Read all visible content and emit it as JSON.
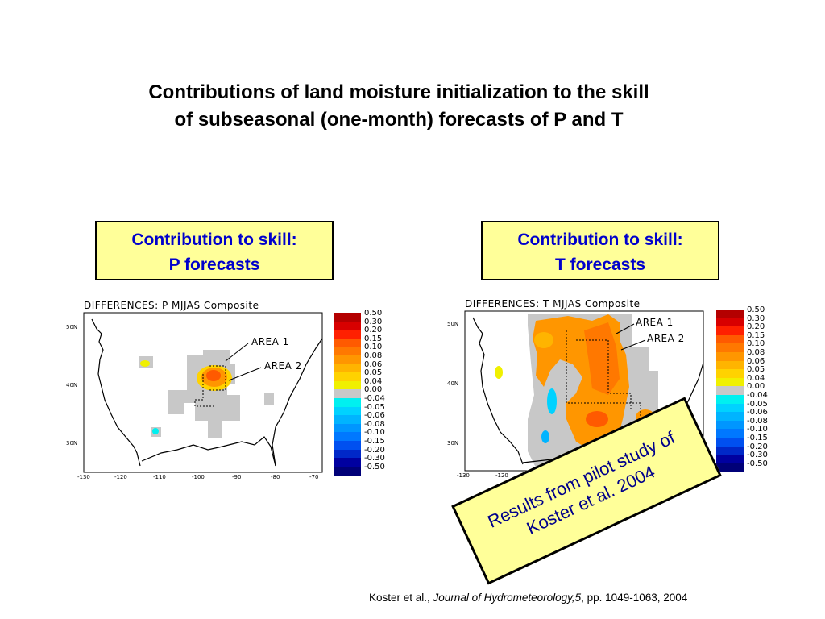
{
  "title": {
    "line1": "Contributions of land moisture initialization to the skill",
    "line2": "of subseasonal (one-month) forecasts of P and T"
  },
  "label_left": {
    "line1": "Contribution to skill:",
    "line2": "P forecasts"
  },
  "label_right": {
    "line1": "Contribution to skill:",
    "line2": "T forecasts"
  },
  "maps": [
    {
      "heading": "DIFFERENCES:  P    MJJAS Composite",
      "area1": "AREA 1",
      "area2": "AREA 2",
      "lat_ticks": [
        "50N",
        "40N",
        "30N"
      ],
      "lon_ticks": [
        "-130",
        "-120",
        "-110",
        "-100",
        "-90",
        "-80",
        "-70"
      ]
    },
    {
      "heading": "DIFFERENCES:  T    MJJAS Composite",
      "area1": "AREA 1",
      "area2": "AREA 2",
      "lat_ticks": [
        "50N",
        "40N",
        "30N"
      ],
      "lon_ticks": [
        "-130",
        "-120"
      ]
    }
  ],
  "legend": [
    {
      "label": "0.50",
      "color": "#b40000"
    },
    {
      "label": "0.30",
      "color": "#d80000"
    },
    {
      "label": "0.20",
      "color": "#ff2000"
    },
    {
      "label": "0.15",
      "color": "#ff5a00"
    },
    {
      "label": "0.10",
      "color": "#ff7800"
    },
    {
      "label": "0.08",
      "color": "#ff9600"
    },
    {
      "label": "0.06",
      "color": "#ffb400"
    },
    {
      "label": "0.05",
      "color": "#ffd200"
    },
    {
      "label": "0.04",
      "color": "#f0f000"
    },
    {
      "label": "0.00",
      "color": "#c8c8c8"
    },
    {
      "label": "-0.04",
      "color": "#00f0f0"
    },
    {
      "label": "-0.05",
      "color": "#00d2ff"
    },
    {
      "label": "-0.06",
      "color": "#00b4ff"
    },
    {
      "label": "-0.08",
      "color": "#0096ff"
    },
    {
      "label": "-0.10",
      "color": "#0078ff"
    },
    {
      "label": "-0.15",
      "color": "#0050f0"
    },
    {
      "label": "-0.20",
      "color": "#0028c8"
    },
    {
      "label": "-0.30",
      "color": "#0000a0"
    },
    {
      "label": "-0.50",
      "color": "#000078"
    }
  ],
  "note": {
    "line1": "Results from pilot study of",
    "line2": "Koster et al. 2004"
  },
  "citation": {
    "authors": "Koster et al., ",
    "journal": "Journal of Hydrometeorology,5",
    "pages": ", pp. 1049-1063, 2004"
  }
}
